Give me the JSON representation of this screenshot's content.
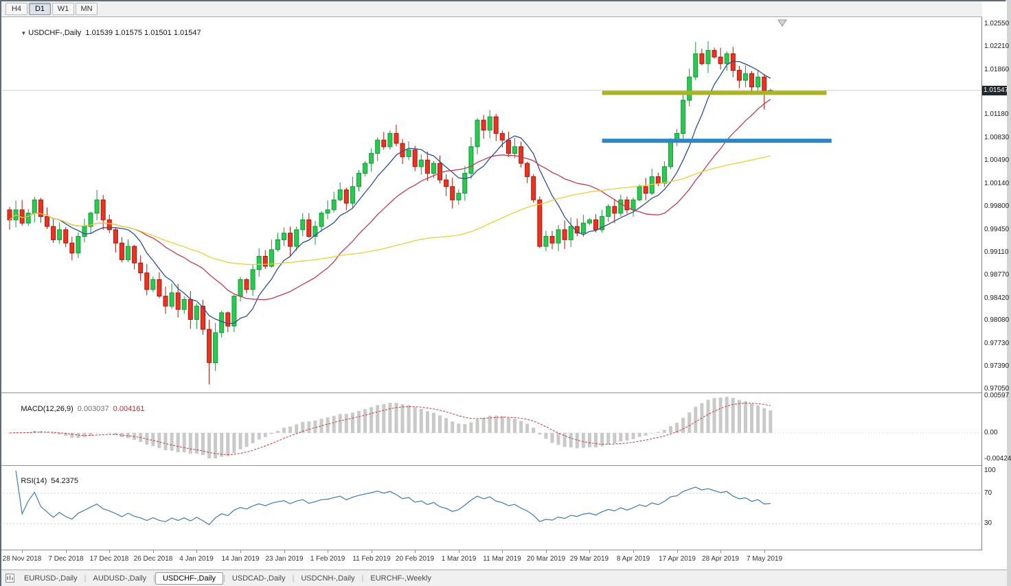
{
  "toolbar": {
    "timeframes": [
      {
        "label": "H4",
        "active": false
      },
      {
        "label": "D1",
        "active": true
      },
      {
        "label": "W1",
        "active": false
      },
      {
        "label": "MN",
        "active": false
      }
    ]
  },
  "main_chart": {
    "dropdown_icon": "▼",
    "symbol_title": "USDCHF-,Daily",
    "ohlc_display": "1.01539 1.01575 1.01501 1.01547",
    "price_tag": "1.01547",
    "price_axis_labels": [
      "1.02550",
      "1.02210",
      "1.01860",
      "1.01180",
      "1.00830",
      "1.00490",
      "1.00140",
      "0.99800",
      "0.99450",
      "0.99110",
      "0.98770",
      "0.98420",
      "0.98080",
      "0.97730",
      "0.97390",
      "0.97050"
    ]
  },
  "macd_panel": {
    "title": "MACD(12,26,9)",
    "value_main": "0.003037",
    "value_signal": "0.004161",
    "axis_labels": [
      "0.00597",
      "0.00",
      "-0.00424"
    ]
  },
  "rsi_panel": {
    "title": "RSI(14)",
    "value": "54.2375",
    "axis_labels": [
      "100",
      "70",
      "30"
    ]
  },
  "time_axis": {
    "dates": [
      "28 Nov 2018",
      "7 Dec 2018",
      "17 Dec 2018",
      "26 Dec 2018",
      "4 Jan 2019",
      "14 Jan 2019",
      "23 Jan 2019",
      "1 Feb 2019",
      "11 Feb 2019",
      "20 Feb 2019",
      "1 Mar 2019",
      "11 Mar 2019",
      "20 Mar 2019",
      "29 Mar 2019",
      "8 Apr 2019",
      "17 Apr 2019",
      "28 Apr 2019",
      "7 May 2019"
    ]
  },
  "tabs": {
    "items": [
      {
        "label": "EURUSD-,Daily",
        "active": false
      },
      {
        "label": "AUDUSD-,Daily",
        "active": false
      },
      {
        "label": "USDCHF-,Daily",
        "active": true
      },
      {
        "label": "USDCAD-,Daily",
        "active": false
      },
      {
        "label": "USDCNH-,Daily",
        "active": false
      },
      {
        "label": "EURCHF-,Weekly",
        "active": false
      }
    ]
  },
  "chart_data": {
    "type": "candlestick",
    "symbol": "USDCHF",
    "timeframe": "Daily",
    "current_bar": {
      "open": 1.01539,
      "high": 1.01575,
      "low": 1.01501,
      "close": 1.01547
    },
    "price_axis": {
      "max": 1.0264,
      "min": 0.97
    },
    "macd_axis": {
      "max": 0.0063,
      "min": -0.0051
    },
    "rsi_axis": {
      "max": 106,
      "min": -4
    },
    "date_start_index": 2,
    "date_step": 7,
    "first_open": 0.9975,
    "closes": [
      0.996,
      0.9975,
      0.9955,
      0.997,
      0.999,
      0.9965,
      0.995,
      0.993,
      0.9945,
      0.9925,
      0.991,
      0.9935,
      0.995,
      0.997,
      0.999,
      0.996,
      0.9945,
      0.9925,
      0.99,
      0.992,
      0.9895,
      0.988,
      0.9855,
      0.987,
      0.9845,
      0.983,
      0.985,
      0.9825,
      0.984,
      0.981,
      0.983,
      0.9795,
      0.9745,
      0.979,
      0.982,
      0.98,
      0.9845,
      0.987,
      0.9855,
      0.9885,
      0.9905,
      0.989,
      0.9915,
      0.993,
      0.994,
      0.992,
      0.9945,
      0.996,
      0.9935,
      0.995,
      0.997,
      0.9975,
      0.999,
      1.0005,
      0.9985,
      1.001,
      1.003,
      1.0045,
      1.006,
      1.008,
      1.007,
      1.009,
      1.0075,
      1.0055,
      1.0065,
      1.004,
      1.005,
      1.003,
      1.0045,
      1.002,
      1.001,
      0.999,
      1.0,
      1.003,
      1.007,
      1.011,
      1.0095,
      1.0115,
      1.009,
      1.008,
      1.006,
      1.007,
      1.0045,
      1.0025,
      0.999,
      0.992,
      0.9935,
      0.9925,
      0.9945,
      0.993,
      0.995,
      0.994,
      0.9955,
      0.996,
      0.9945,
      0.9965,
      0.998,
      0.997,
      0.999,
      0.9975,
      0.999,
      1.001,
      1.0,
      1.0025,
      1.0015,
      1.004,
      1.008,
      1.009,
      1.014,
      1.0175,
      1.021,
      1.0195,
      1.0215,
      1.0205,
      1.0195,
      1.021,
      1.0185,
      1.017,
      1.018,
      1.016,
      1.0175,
      1.015,
      1.01547
    ],
    "overrides": {
      "32": {
        "low": 0.9712
      },
      "110": {
        "high": 1.0228
      },
      "121": {
        "low": 1.0126
      },
      "122": {
        "open": 1.01539,
        "high": 1.01575,
        "low": 1.01501,
        "close": 1.01547
      }
    },
    "moving_averages": [
      {
        "name": "fast",
        "period": 8,
        "color": "#2a4d9b"
      },
      {
        "name": "medium",
        "period": 21,
        "color": "#c13b4e"
      },
      {
        "name": "slow",
        "period": 55,
        "color": "#e9cf35"
      }
    ],
    "macd": {
      "fast": 12,
      "slow": 26,
      "signal": 9,
      "displayed_main": 0.003037,
      "displayed_signal": 0.004161
    },
    "rsi_period": 14,
    "rsi_displayed": 54.2375,
    "levels": [
      {
        "name": "resistance-line",
        "price": 1.0151,
        "color": "#a8b521",
        "thickness": 6,
        "from_index": 95,
        "to_index": 131
      },
      {
        "name": "support-line",
        "price": 1.0079,
        "color": "#2e86c8",
        "thickness": 6,
        "from_index": 95,
        "to_index": 131.8
      }
    ],
    "style": {
      "up_color": "#2bc94f",
      "up_border": "#119938",
      "down_color": "#ea3423",
      "down_border": "#b01507",
      "macd_hist": "#c9c9c9",
      "macd_signal": "#cc3333",
      "rsi_line": "#3c78b4",
      "current_price_line": "#cdcdcd",
      "price_tag_bg": "#22272d"
    }
  }
}
